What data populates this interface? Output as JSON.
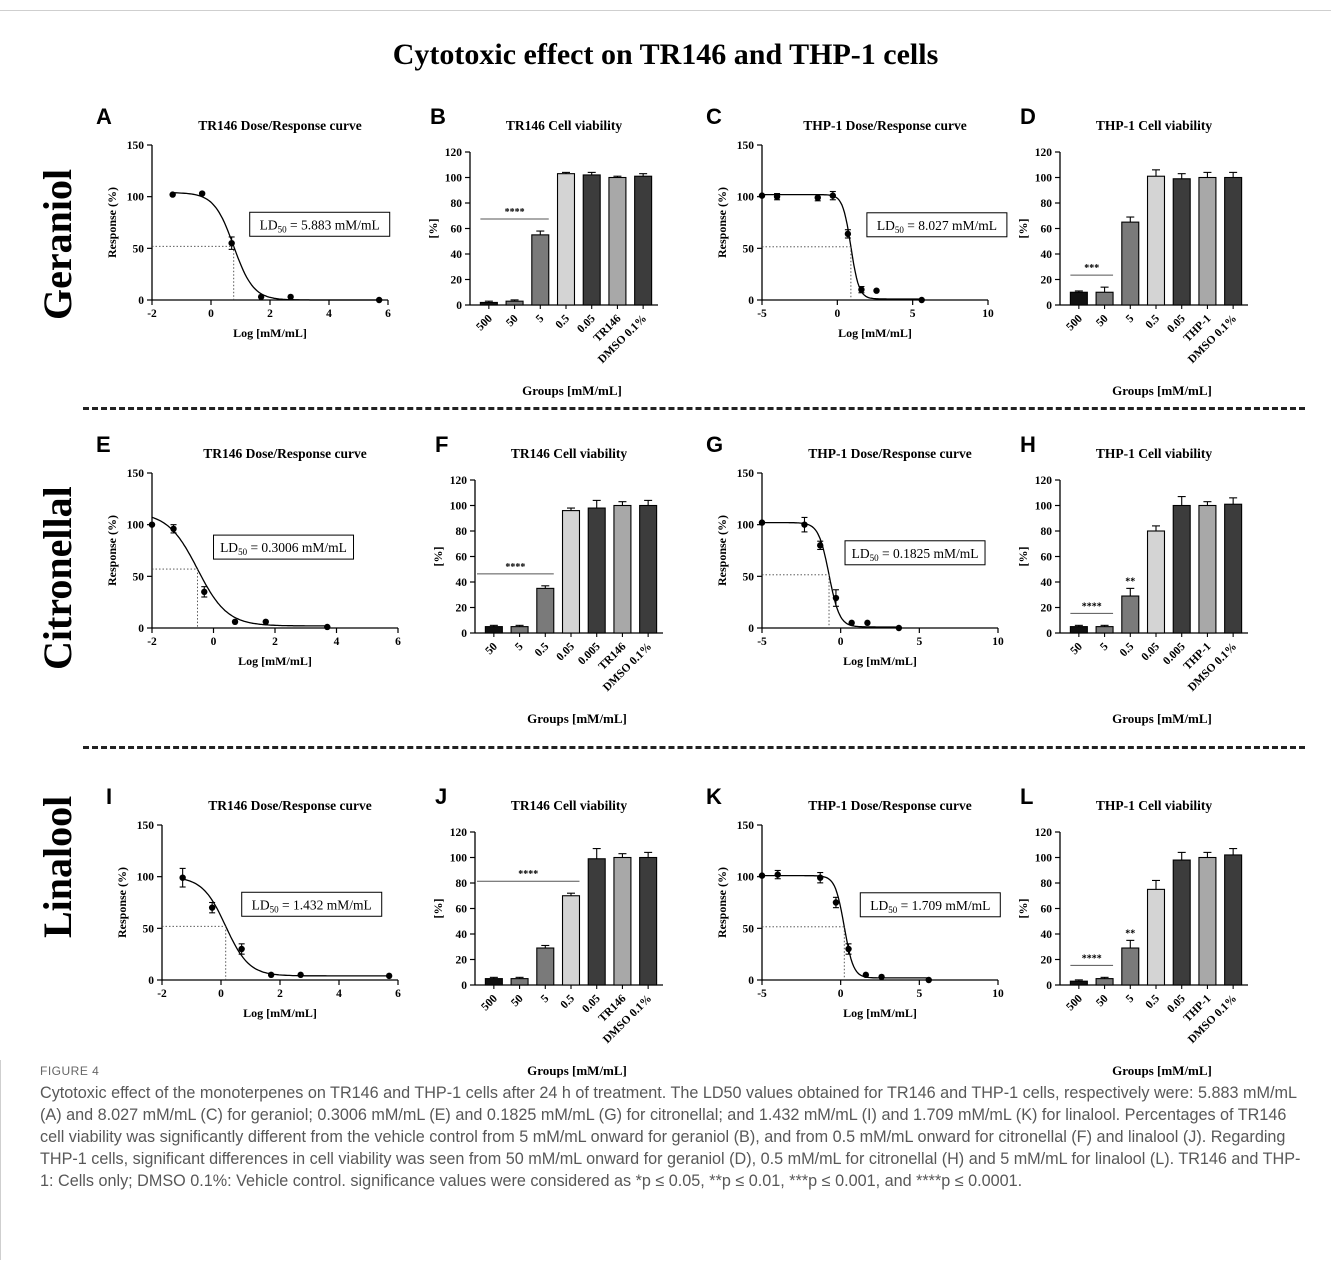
{
  "figure_title": "Cytotoxic effect on TR146 and THP-1 cells",
  "row_labels": [
    "Geraniol",
    "Citronellal",
    "Linalool"
  ],
  "caption": {
    "figure_no": "FIGURE 4",
    "text": "Cytotoxic effect of the monoterpenes on TR146 and THP-1 cells after 24 h of treatment. The LD50 values obtained for TR146 and THP-1 cells, respectively were: 5.883 mM/mL (A) and 8.027 mM/mL (C) for geraniol; 0.3006 mM/mL (E) and 0.1825 mM/mL (G) for citronellal; and 1.432 mM/mL (I) and 1.709 mM/mL (K) for linalool. Percentages of TR146 cell viability was significantly different from the vehicle control from 5 mM/mL onward for geraniol (B), and from 0.5 mM/mL onward for citronellal (F) and linalool (J). Regarding THP-1 cells, significant differences in cell viability was seen from 50 mM/mL onward for geraniol (D), 0.5 mM/mL for citronellal (H) and 5 mM/mL for linalool (L). TR146 and THP-1: Cells only; DMSO 0.1%: Vehicle control. significance values were considered as *p ≤ 0.05, **p ≤ 0.01, ***p ≤ 0.001, and ****p ≤ 0.0001."
  },
  "colors": {
    "black": "#111111",
    "dark": "#3c3c3c",
    "mid": "#7a7a7a",
    "light": "#d4d4d4",
    "gray": "#a8a8a8"
  },
  "chart_data": [
    {
      "id": "A",
      "type": "scatter",
      "title": "TR146 Dose/Response curve",
      "xlabel": "Log [mM/mL]",
      "ylabel": "Response (%)",
      "xlim": [
        -2,
        6
      ],
      "xticks": [
        -2,
        0,
        2,
        4,
        6
      ],
      "ylim": [
        0,
        150
      ],
      "yticks": [
        0,
        50,
        100,
        150
      ],
      "points": [
        [
          -1.3,
          102
        ],
        [
          -0.3,
          103
        ],
        [
          0.7,
          55
        ],
        [
          1.7,
          3
        ],
        [
          2.7,
          3
        ],
        [
          5.7,
          0
        ]
      ],
      "errors": [
        0,
        0,
        6,
        0,
        0,
        0
      ],
      "curve": {
        "top": 104,
        "bottom": 0,
        "logec50": 0.77,
        "hill": 1.3
      },
      "ld50_label": "LD50 = 5.883 mM/mL",
      "ld50_x": 0.77
    },
    {
      "id": "B",
      "type": "bar",
      "title": "TR146 Cell viability",
      "xlabel": "Groups [mM/mL]",
      "ylabel": "[%]",
      "ylim": [
        0,
        120
      ],
      "yticks": [
        0,
        20,
        40,
        60,
        80,
        100,
        120
      ],
      "categories": [
        "500",
        "50",
        "5",
        "0.5",
        "0.05",
        "TR146",
        "DMSO 0.1%"
      ],
      "values": [
        2,
        3,
        55,
        103,
        102,
        100,
        101
      ],
      "errors": [
        1,
        1,
        3,
        1,
        2,
        1,
        2
      ],
      "shades": [
        "black",
        "mid",
        "mid",
        "light",
        "dark",
        "gray",
        "dark"
      ],
      "sig": {
        "label": "****",
        "from": 0,
        "to": 2
      }
    },
    {
      "id": "C",
      "type": "scatter",
      "title": "THP-1 Dose/Response curve",
      "xlabel": "Log [mM/mL]",
      "ylabel": "Response (%)",
      "xlim": [
        -5,
        10
      ],
      "xticks": [
        -5,
        0,
        5,
        10
      ],
      "ylim": [
        0,
        150
      ],
      "yticks": [
        0,
        50,
        100,
        150
      ],
      "points": [
        [
          -5,
          101
        ],
        [
          -4,
          100
        ],
        [
          -1.3,
          99
        ],
        [
          -0.3,
          101
        ],
        [
          0.7,
          64
        ],
        [
          1.6,
          10
        ],
        [
          2.6,
          9
        ],
        [
          5.6,
          0
        ]
      ],
      "errors": [
        0,
        3,
        3,
        4,
        4,
        3,
        0,
        0
      ],
      "curve": {
        "top": 102,
        "bottom": 1,
        "logec50": 0.9,
        "hill": 1.6
      },
      "ld50_label": "LD50 = 8.027 mM/mL",
      "ld50_x": 0.9
    },
    {
      "id": "D",
      "type": "bar",
      "title": "THP-1 Cell viability",
      "xlabel": "Groups [mM/mL]",
      "ylabel": "[%]",
      "ylim": [
        0,
        120
      ],
      "yticks": [
        0,
        20,
        40,
        60,
        80,
        100,
        120
      ],
      "categories": [
        "500",
        "50",
        "5",
        "0.5",
        "0.05",
        "THP-1",
        "DMSO 0.1%"
      ],
      "values": [
        10,
        10,
        65,
        101,
        99,
        100,
        100
      ],
      "errors": [
        1,
        4,
        4,
        5,
        4,
        4,
        4
      ],
      "shades": [
        "black",
        "mid",
        "mid",
        "light",
        "dark",
        "gray",
        "dark"
      ],
      "sig": {
        "label": "***",
        "from": 0,
        "to": 1
      }
    },
    {
      "id": "E",
      "type": "scatter",
      "title": "TR146 Dose/Response curve",
      "xlabel": "Log [mM/mL]",
      "ylabel": "Response (%)",
      "xlim": [
        -2,
        6
      ],
      "xticks": [
        -2,
        0,
        2,
        4,
        6
      ],
      "ylim": [
        0,
        150
      ],
      "yticks": [
        0,
        50,
        100,
        150
      ],
      "points": [
        [
          -2,
          100
        ],
        [
          -1.3,
          96
        ],
        [
          -0.3,
          35
        ],
        [
          0.7,
          6
        ],
        [
          1.7,
          6
        ],
        [
          3.7,
          1
        ]
      ],
      "errors": [
        0,
        4,
        5,
        0,
        0,
        0
      ],
      "curve": {
        "top": 112,
        "bottom": 2,
        "logec50": -0.52,
        "hill": 0.9
      },
      "ld50_label": "LD50 = 0.3006 mM/mL",
      "ld50_x": -0.52
    },
    {
      "id": "F",
      "type": "bar",
      "title": "TR146 Cell viability",
      "xlabel": "Groups [mM/mL]",
      "ylabel": "[%]",
      "ylim": [
        0,
        120
      ],
      "yticks": [
        0,
        20,
        40,
        60,
        80,
        100,
        120
      ],
      "categories": [
        "50",
        "5",
        "0.5",
        "0.05",
        "0.005",
        "TR146",
        "DMSO 0.1%"
      ],
      "values": [
        5,
        5,
        35,
        96,
        98,
        100,
        100
      ],
      "errors": [
        1,
        1,
        2,
        2,
        6,
        3,
        4
      ],
      "shades": [
        "black",
        "mid",
        "mid",
        "light",
        "dark",
        "gray",
        "dark"
      ],
      "sig": {
        "label": "****",
        "from": -0.5,
        "to": 2
      }
    },
    {
      "id": "G",
      "type": "scatter",
      "title": "THP-1 Dose/Response curve",
      "xlabel": "Log [mM/mL]",
      "ylabel": "Response (%)",
      "xlim": [
        -5,
        10
      ],
      "xticks": [
        -5,
        0,
        5,
        10
      ],
      "ylim": [
        0,
        150
      ],
      "yticks": [
        0,
        50,
        100,
        150
      ],
      "points": [
        [
          -5,
          102
        ],
        [
          -2.3,
          100
        ],
        [
          -1.3,
          80
        ],
        [
          -0.3,
          29
        ],
        [
          0.7,
          5
        ],
        [
          1.7,
          5
        ],
        [
          3.7,
          0
        ]
      ],
      "errors": [
        0,
        7,
        4,
        8,
        0,
        0,
        0
      ],
      "curve": {
        "top": 102,
        "bottom": 1,
        "logec50": -0.74,
        "hill": 1.3
      },
      "ld50_label": "LD50 = 0.1825 mM/mL",
      "ld50_x": -0.74
    },
    {
      "id": "H",
      "type": "bar",
      "title": "THP-1 Cell viability",
      "xlabel": "Groups [mM/mL]",
      "ylabel": "[%]",
      "ylim": [
        0,
        120
      ],
      "yticks": [
        0,
        20,
        40,
        60,
        80,
        100,
        120
      ],
      "categories": [
        "50",
        "5",
        "0.5",
        "0.05",
        "0.005",
        "THP-1",
        "DMSO 0.1%"
      ],
      "values": [
        5,
        5,
        29,
        80,
        100,
        100,
        101
      ],
      "errors": [
        1,
        1,
        6,
        4,
        7,
        3,
        5
      ],
      "shades": [
        "black",
        "mid",
        "mid",
        "light",
        "dark",
        "gray",
        "dark"
      ],
      "sig": {
        "label": "****",
        "from": 0,
        "to": 1
      },
      "marks": [
        {
          "index": 2,
          "label": "**"
        }
      ]
    },
    {
      "id": "I",
      "type": "scatter",
      "title": "TR146 Dose/Response curve",
      "xlabel": "Log [mM/mL]",
      "ylabel": "Response (%)",
      "xlim": [
        -2,
        6
      ],
      "xticks": [
        -2,
        0,
        2,
        4,
        6
      ],
      "ylim": [
        0,
        150
      ],
      "yticks": [
        0,
        50,
        100,
        150
      ],
      "points": [
        [
          -1.3,
          99
        ],
        [
          -0.3,
          70
        ],
        [
          0.7,
          30
        ],
        [
          1.7,
          5
        ],
        [
          2.7,
          5
        ],
        [
          5.7,
          4
        ]
      ],
      "errors": [
        9,
        5,
        5,
        0,
        0,
        0
      ],
      "curve": {
        "top": 100,
        "bottom": 4,
        "logec50": 0.16,
        "hill": 1.1
      },
      "ld50_label": "LD50 = 1.432 mM/mL",
      "ld50_x": 0.16
    },
    {
      "id": "J",
      "type": "bar",
      "title": "TR146 Cell viability",
      "xlabel": "Groups [mM/mL]",
      "ylabel": "[%]",
      "ylim": [
        0,
        120
      ],
      "yticks": [
        0,
        20,
        40,
        60,
        80,
        100,
        120
      ],
      "categories": [
        "500",
        "50",
        "5",
        "0.5",
        "0.05",
        "TR146",
        "DMSO 0.1%"
      ],
      "values": [
        5,
        5,
        29,
        70,
        99,
        100,
        100
      ],
      "errors": [
        1,
        1,
        2,
        2,
        8,
        3,
        4
      ],
      "shades": [
        "black",
        "mid",
        "mid",
        "light",
        "dark",
        "gray",
        "dark"
      ],
      "sig": {
        "label": "****",
        "from": -0.5,
        "to": 3
      }
    },
    {
      "id": "K",
      "type": "scatter",
      "title": "THP-1 Dose/Response curve",
      "xlabel": "Log [mM/mL]",
      "ylabel": "Response (%)",
      "xlim": [
        -5,
        10
      ],
      "xticks": [
        -5,
        0,
        5,
        10
      ],
      "ylim": [
        0,
        150
      ],
      "yticks": [
        0,
        50,
        100,
        150
      ],
      "points": [
        [
          -5,
          101
        ],
        [
          -4,
          102
        ],
        [
          -1.3,
          99
        ],
        [
          -0.3,
          75
        ],
        [
          0.5,
          30
        ],
        [
          1.6,
          5
        ],
        [
          2.6,
          3
        ],
        [
          5.6,
          0
        ]
      ],
      "errors": [
        0,
        4,
        5,
        5,
        5,
        0,
        0,
        0
      ],
      "curve": {
        "top": 101,
        "bottom": 2,
        "logec50": 0.23,
        "hill": 1.5
      },
      "ld50_label": "LD50 = 1.709 mM/mL",
      "ld50_x": 0.23
    },
    {
      "id": "L",
      "type": "bar",
      "title": "THP-1 Cell viability",
      "xlabel": "Groups [mM/mL]",
      "ylabel": "[%]",
      "ylim": [
        0,
        120
      ],
      "yticks": [
        0,
        20,
        40,
        60,
        80,
        100,
        120
      ],
      "categories": [
        "500",
        "50",
        "5",
        "0.5",
        "0.05",
        "THP-1",
        "DMSO 0.1%"
      ],
      "values": [
        3,
        5,
        29,
        75,
        98,
        100,
        102
      ],
      "errors": [
        1,
        1,
        6,
        7,
        6,
        4,
        5
      ],
      "shades": [
        "black",
        "mid",
        "mid",
        "light",
        "dark",
        "gray",
        "dark"
      ],
      "sig": {
        "label": "****",
        "from": 0,
        "to": 1
      },
      "marks": [
        {
          "index": 2,
          "label": "**"
        }
      ]
    }
  ]
}
